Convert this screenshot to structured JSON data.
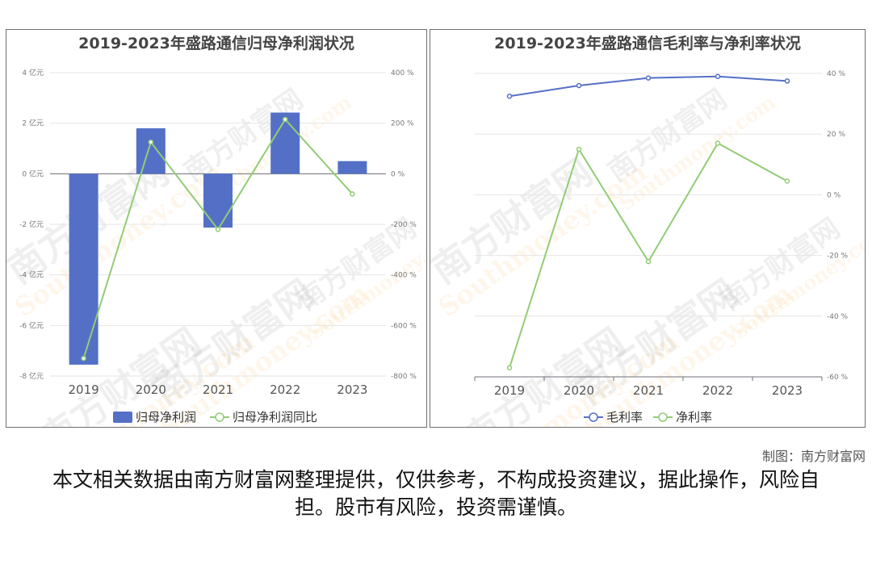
{
  "colors": {
    "bar": "#5470c6",
    "line_green": "#91cc75",
    "line_blue": "#5470c6"
  },
  "watermark": {
    "text_cn": "南方财富网",
    "text_en": "Southmoney.com"
  },
  "chart_data": [
    {
      "type": "bar",
      "title": "2019-2023年盛路通信归母净利润状况",
      "categories": [
        "2019",
        "2020",
        "2021",
        "2022",
        "2023"
      ],
      "series": [
        {
          "name": "归母净利润",
          "type": "bar",
          "axis": "left",
          "values": [
            -7.55,
            1.8,
            -2.13,
            2.42,
            0.5
          ]
        },
        {
          "name": "归母净利润同比",
          "type": "line",
          "axis": "right",
          "values": [
            -730,
            125,
            -220,
            215,
            -80
          ]
        }
      ],
      "y_left": {
        "min": -8,
        "max": 4,
        "ticks": [
          "4 亿元",
          "2 亿元",
          "0 亿元",
          "-2 亿元",
          "-4 亿元",
          "-6 亿元",
          "-8 亿元"
        ]
      },
      "y_right": {
        "min": -800,
        "max": 400,
        "ticks": [
          "400 %",
          "200 %",
          "0 %",
          "-200 %",
          "-400 %",
          "-600 %",
          "-800 %"
        ]
      },
      "legend": [
        "归母净利润",
        "归母净利润同比"
      ],
      "grid": true,
      "legend_position": "bottom"
    },
    {
      "type": "line",
      "title": "2019-2023年盛路通信毛利率与净利率状况",
      "categories": [
        "2019",
        "2020",
        "2021",
        "2022",
        "2023"
      ],
      "series": [
        {
          "name": "毛利率",
          "values": [
            32.5,
            36,
            38.5,
            39,
            37.5
          ]
        },
        {
          "name": "净利率",
          "values": [
            -57,
            15,
            -22,
            17,
            4.5
          ]
        }
      ],
      "y": {
        "min": -60,
        "max": 40,
        "ticks": [
          "40 %",
          "20 %",
          "0 %",
          "-20 %",
          "-40 %",
          "-60 %"
        ]
      },
      "legend": [
        "毛利率",
        "净利率"
      ],
      "grid": true,
      "legend_position": "bottom"
    }
  ],
  "footer": {
    "credit": "制图：南方财富网",
    "disclaimer": "本文相关数据由南方财富网整理提供，仅供参考，不构成投资建议，据此操作，风险自担。股市有风险，投资需谨慎。"
  }
}
